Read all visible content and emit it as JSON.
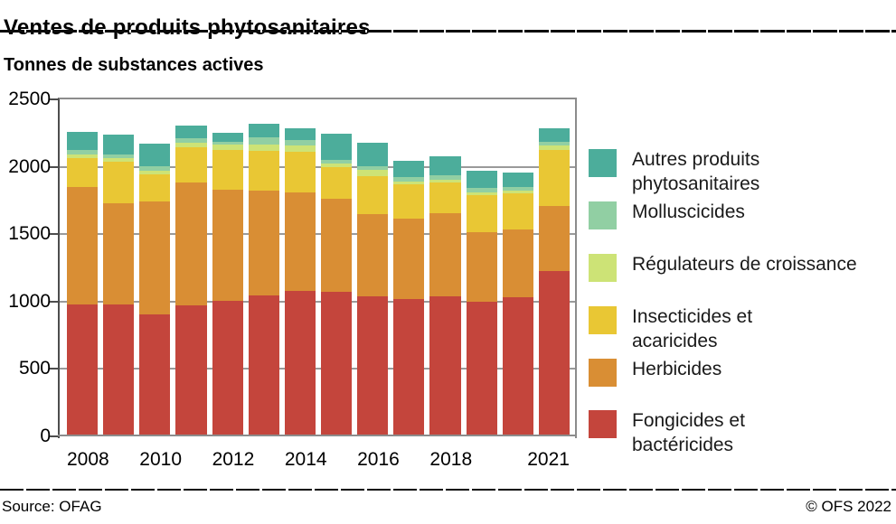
{
  "header": {
    "title": "Ventes de produits phytosanitaires",
    "subtitle": "Tonnes de substances actives"
  },
  "footer": {
    "source": "Source: OFAG",
    "copyright": "© OFS 2022"
  },
  "chart_data": {
    "type": "bar",
    "stacked": true,
    "title": "Ventes de produits phytosanitaires",
    "subtitle": "Tonnes de substances actives",
    "ylabel": "Tonnes de substances actives",
    "xlabel": "",
    "ylim": [
      0,
      2500
    ],
    "y_ticks": [
      0,
      500,
      1000,
      1500,
      2000,
      2500
    ],
    "grid": true,
    "legend_position": "right",
    "categories": [
      "2008",
      "2009",
      "2010",
      "2011",
      "2012",
      "2013",
      "2014",
      "2015",
      "2016",
      "2017",
      "2018",
      "2019",
      "2020",
      "2021"
    ],
    "x_axis_labels": [
      {
        "index": 0,
        "label": "2008"
      },
      {
        "index": 2,
        "label": "2010"
      },
      {
        "index": 4,
        "label": "2012"
      },
      {
        "index": 6,
        "label": "2014"
      },
      {
        "index": 8,
        "label": "2016"
      },
      {
        "index": 10,
        "label": "2018"
      },
      {
        "index": 13,
        "label": "2021"
      }
    ],
    "series_order": "bottom-to-top",
    "series": [
      {
        "name": "Fongicides et bactéricides",
        "color": "#C4453C",
        "values": [
          955,
          955,
          880,
          945,
          980,
          1020,
          1050,
          1045,
          1015,
          995,
          1010,
          975,
          1005,
          1200
        ]
      },
      {
        "name": "Herbicides",
        "color": "#D98E34",
        "values": [
          870,
          750,
          835,
          910,
          825,
          775,
          730,
          690,
          605,
          595,
          620,
          510,
          505,
          480
        ]
      },
      {
        "name": "Insecticides et acaricides",
        "color": "#E9C734",
        "values": [
          215,
          305,
          200,
          265,
          290,
          295,
          305,
          235,
          285,
          250,
          230,
          280,
          265,
          420
        ]
      },
      {
        "name": "Régulateurs de croissance",
        "color": "#CDE376",
        "values": [
          25,
          25,
          30,
          30,
          40,
          50,
          45,
          30,
          45,
          25,
          20,
          20,
          20,
          30
        ]
      },
      {
        "name": "Molluscicides",
        "color": "#91CFA3",
        "values": [
          35,
          30,
          35,
          35,
          25,
          50,
          40,
          25,
          25,
          30,
          30,
          30,
          30,
          30
        ]
      },
      {
        "name": "Autres produits phytosanitaires",
        "color": "#4CAD9B",
        "values": [
          135,
          145,
          165,
          95,
          65,
          100,
          90,
          195,
          180,
          125,
          140,
          130,
          105,
          100
        ]
      }
    ],
    "legend": [
      {
        "label": "Autres produits\nphytosanitaires",
        "color": "#4CAD9B"
      },
      {
        "label": "Molluscicides",
        "color": "#91CFA3"
      },
      {
        "label": "Régulateurs de croissance",
        "color": "#CDE376"
      },
      {
        "label": "Insecticides et\nacaricides",
        "color": "#E9C734"
      },
      {
        "label": "Herbicides",
        "color": "#D98E34"
      },
      {
        "label": "Fongicides et\nbactéricides",
        "color": "#C4453C"
      }
    ]
  }
}
